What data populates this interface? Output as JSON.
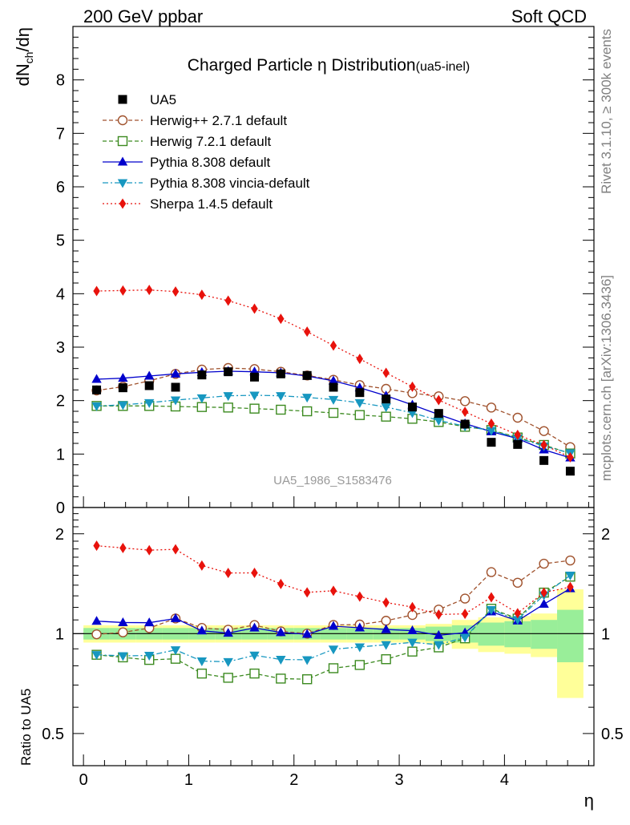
{
  "header": {
    "left": "200 GeV ppbar",
    "right": "Soft QCD"
  },
  "side_labels": {
    "rivet": "Rivet 3.1.10, ≥ 300k events",
    "mcplots": "mcplots.cern.ch [arXiv:1306.3436]"
  },
  "chart_data": {
    "type": "scatter",
    "title": "Charged Particle η Distribution",
    "subtitle": "(ua5-inel)",
    "watermark": "UA5_1986_S1583476",
    "ylabel": "dN_ch/dη",
    "ratio_ylabel": "Ratio to UA5",
    "xlabel": "η",
    "xlim": [
      -0.1,
      4.85
    ],
    "ylim": [
      0,
      9
    ],
    "ratio_ylim": [
      0.4,
      2.4
    ],
    "x_ticks": [
      "0",
      "1",
      "2",
      "3",
      "4"
    ],
    "y_ticks": [
      "0",
      "1",
      "2",
      "3",
      "4",
      "5",
      "6",
      "7",
      "8"
    ],
    "ratio_ticks": [
      "0.5",
      "1",
      "2"
    ],
    "x": [
      0.125,
      0.375,
      0.625,
      0.875,
      1.125,
      1.375,
      1.625,
      1.875,
      2.125,
      2.375,
      2.625,
      2.875,
      3.125,
      3.375,
      3.625,
      3.875,
      4.125,
      4.375,
      4.625
    ],
    "data": {
      "name": "UA5",
      "values": [
        2.2,
        2.24,
        2.28,
        2.25,
        2.48,
        2.54,
        2.44,
        2.5,
        2.47,
        2.25,
        2.15,
        2.03,
        1.88,
        1.76,
        1.56,
        1.22,
        1.18,
        0.88,
        0.68
      ]
    },
    "band_inner": [
      0.04,
      0.04,
      0.04,
      0.04,
      0.04,
      0.04,
      0.04,
      0.04,
      0.04,
      0.04,
      0.04,
      0.04,
      0.04,
      0.05,
      0.06,
      0.08,
      0.09,
      0.1,
      0.18
    ],
    "band_outer": [
      0.06,
      0.06,
      0.06,
      0.06,
      0.06,
      0.06,
      0.06,
      0.06,
      0.06,
      0.06,
      0.06,
      0.06,
      0.06,
      0.07,
      0.1,
      0.12,
      0.13,
      0.15,
      0.36
    ],
    "series": [
      {
        "name": "Herwig++ 2.7.1 default",
        "color": "#a0522d",
        "marker": "circle-open",
        "dash": "5,3",
        "values": [
          2.19,
          2.26,
          2.37,
          2.5,
          2.58,
          2.61,
          2.59,
          2.54,
          2.47,
          2.39,
          2.29,
          2.22,
          2.14,
          2.08,
          1.99,
          1.87,
          1.68,
          1.43,
          1.13
        ]
      },
      {
        "name": "Herwig 7.2.1 default",
        "color": "#3c8a20",
        "marker": "square-open",
        "dash": "5,3",
        "values": [
          1.9,
          1.9,
          1.9,
          1.89,
          1.88,
          1.87,
          1.85,
          1.83,
          1.8,
          1.77,
          1.73,
          1.7,
          1.66,
          1.6,
          1.51,
          1.45,
          1.31,
          1.17,
          1.01
        ]
      },
      {
        "name": "Pythia 8.308 default",
        "color": "#0000cc",
        "marker": "triangle-up",
        "dash": "",
        "values": [
          2.4,
          2.42,
          2.46,
          2.5,
          2.53,
          2.55,
          2.54,
          2.52,
          2.46,
          2.37,
          2.24,
          2.09,
          1.92,
          1.74,
          1.57,
          1.42,
          1.29,
          1.08,
          0.93
        ]
      },
      {
        "name": "Pythia 8.308 vincia-default",
        "color": "#1797c0",
        "marker": "triangle-down",
        "dash": "7,3,2,3",
        "values": [
          1.9,
          1.92,
          1.96,
          2.01,
          2.05,
          2.09,
          2.1,
          2.09,
          2.06,
          2.02,
          1.96,
          1.88,
          1.77,
          1.63,
          1.52,
          1.44,
          1.3,
          1.15,
          1.02
        ]
      },
      {
        "name": "Sherpa 1.4.5 default",
        "color": "#e8120c",
        "marker": "diamond",
        "dash": "2,3",
        "values": [
          4.05,
          4.06,
          4.07,
          4.04,
          3.98,
          3.87,
          3.72,
          3.53,
          3.29,
          3.03,
          2.78,
          2.52,
          2.26,
          2.01,
          1.79,
          1.57,
          1.36,
          1.17,
          0.94
        ]
      }
    ]
  }
}
